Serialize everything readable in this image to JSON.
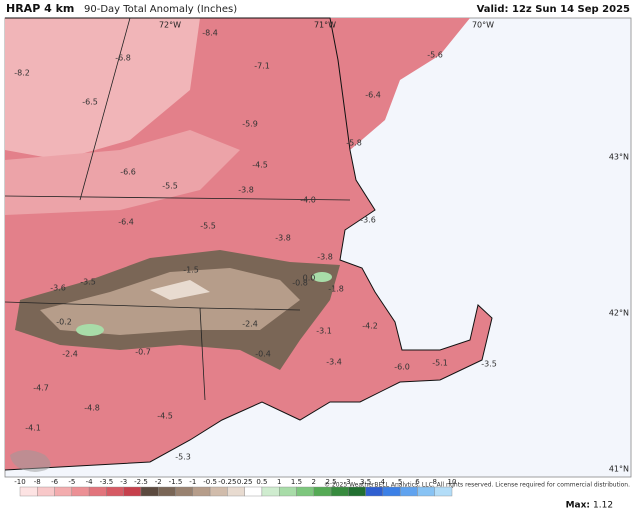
{
  "header": {
    "title": "HRAP 4 km",
    "subtitle": "90-Day Total Anomaly (Inches)",
    "valid": "Valid: 12z Sun 14 Sep 2025"
  },
  "map": {
    "lon_labels": [
      "72°W",
      "71°W",
      "70°W"
    ],
    "lat_labels": [
      "43°N",
      "42°N",
      "41°N"
    ],
    "point_labels": [
      "-8.4",
      "-6.8",
      "-7.1",
      "-8.2",
      "-6.5",
      "-5.6",
      "-6.4",
      "-5.9",
      "-5.8",
      "-6.6",
      "-5.5",
      "-4.5",
      "-3.8",
      "-4.0",
      "-3.6",
      "-6.4",
      "-5.5",
      "-3.8",
      "-3.8",
      "-1.5",
      "0.0",
      "-0.8",
      "-1.8",
      "-3.6",
      "-3.5",
      "-0.2",
      "-2.4",
      "-3.1",
      "-4.2",
      "-2.4",
      "-0.7",
      "-0.4",
      "-3.4",
      "-5.1",
      "-6.0",
      "-3.5",
      "-4.7",
      "-4.8",
      "-4.5",
      "-4.1",
      "-5.3"
    ],
    "copyright": "© 2025 WeatherBELL Analytics, LLC. All rights reserved. License required for commercial distribution."
  },
  "colorbar": {
    "labels": [
      "-10",
      "-8",
      "-6",
      "-5",
      "-4",
      "-3.5",
      "-3",
      "-2.5",
      "-2",
      "-1.5",
      "-1",
      "-0.5",
      "-0.25",
      "0.25",
      "0.5",
      "1",
      "1.5",
      "2",
      "2.5",
      "3",
      "3.5",
      "4",
      "5",
      "6",
      "8",
      "10"
    ],
    "colors": [
      "#fde3e3",
      "#f8c8c9",
      "#f3acae",
      "#ec9095",
      "#e2747c",
      "#d65a64",
      "#c6404c",
      "#5c4a3f",
      "#7a6656",
      "#998270",
      "#b69d8a",
      "#d1bcab",
      "#e8dbd0",
      "#ffffff",
      "#cfeccf",
      "#a8dca8",
      "#7dc67d",
      "#55aa55",
      "#378b3e",
      "#216f30",
      "#2f5fd0",
      "#3c80e6",
      "#60a3ef",
      "#88c3f4",
      "#b3ddf8"
    ]
  },
  "footer": {
    "max_label": "Max:",
    "max_value": "1.12"
  }
}
